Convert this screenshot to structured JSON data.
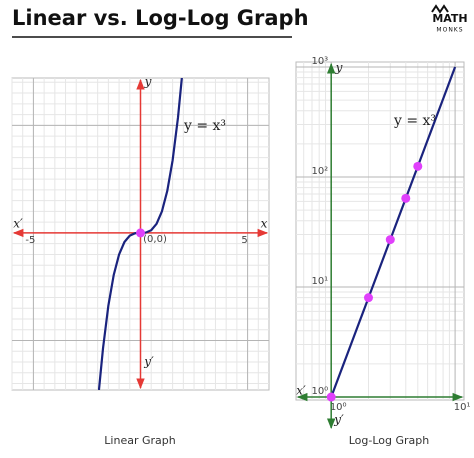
{
  "title": "Linear vs. Log-Log Graph",
  "logo": [
    "MATH",
    "MONKS"
  ],
  "chart_data": [
    {
      "type": "line",
      "caption": "Linear Graph",
      "annotation": "y = x³",
      "axis_labels": {
        "x_left": "x′",
        "x_right": "x",
        "y_top": "y",
        "y_bottom": "y′",
        "origin": "(0,0)"
      },
      "x": [
        -1.94,
        -1.75,
        -1.5,
        -1.25,
        -1,
        -0.75,
        -0.5,
        -0.25,
        0,
        0.25,
        0.5,
        0.75,
        1,
        1.25,
        1.5,
        1.75,
        1.94
      ],
      "values": [
        -7.3,
        -5.359,
        -3.375,
        -1.953,
        -1,
        -0.422,
        -0.125,
        -0.016,
        0,
        0.016,
        0.125,
        0.422,
        1,
        1.953,
        3.375,
        5.359,
        7.3
      ],
      "color": "#1a237e",
      "markers": {
        "x": [
          0
        ],
        "values": [
          0
        ],
        "color": "#e040fb"
      },
      "axis_color": "#e53935",
      "xlim": [
        -6,
        6
      ],
      "ylim": [
        -7.3,
        7.2
      ],
      "xticks": [
        -5,
        5
      ],
      "yticks": [
        -5,
        5
      ],
      "grid": true
    },
    {
      "type": "line",
      "caption": "Log-Log Graph",
      "annotation": "y = x³",
      "axis_labels": {
        "x_left": "x′",
        "y_top": "y",
        "y_bottom": "y′"
      },
      "x": [
        1,
        10
      ],
      "values": [
        1,
        1000
      ],
      "color": "#1a237e",
      "markers": {
        "x": [
          1,
          2,
          3,
          4,
          5
        ],
        "values": [
          1,
          8,
          27,
          64,
          125
        ],
        "color": "#e040fb"
      },
      "axis_color": "#2e7d32",
      "xscale": "log",
      "yscale": "log",
      "xlim": [
        0.52,
        11.8
      ],
      "ylim": [
        0.94,
        1110
      ],
      "xticks": [
        {
          "value": 1,
          "label": "10⁰"
        },
        {
          "value": 10,
          "label": "10¹"
        }
      ],
      "yticks": [
        {
          "value": 1,
          "label": "10⁰"
        },
        {
          "value": 10,
          "label": "10¹"
        },
        {
          "value": 100,
          "label": "10²"
        },
        {
          "value": 1000,
          "label": "10³"
        }
      ],
      "grid": true
    }
  ]
}
